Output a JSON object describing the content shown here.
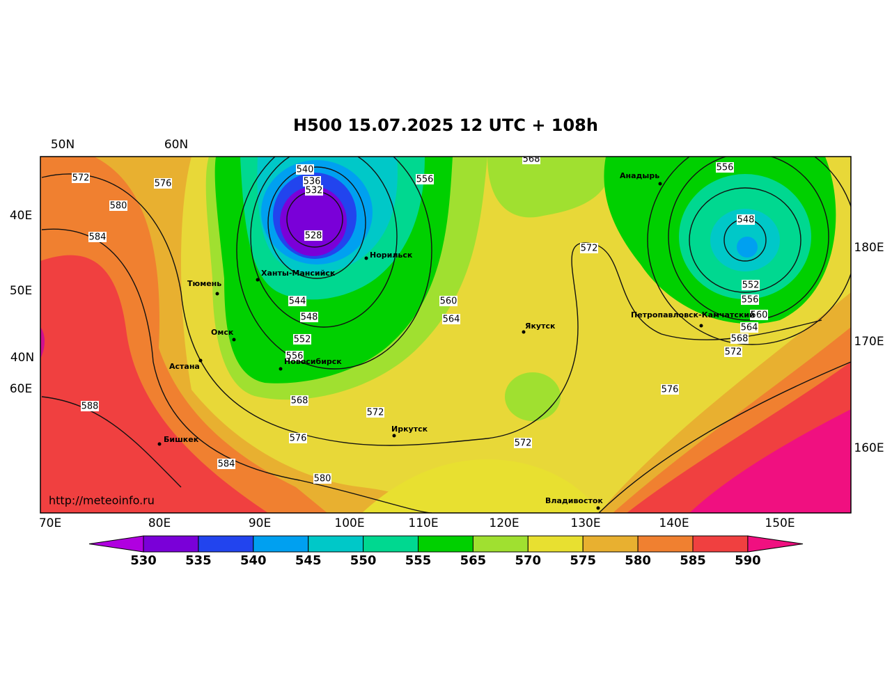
{
  "title": "H500  15.07.2025 12 UTC + 108h",
  "url": "http://meteoinfo.ru",
  "top_labels": [
    "50N",
    "60N"
  ],
  "left_labels": [
    "40E",
    "50E",
    "40N",
    "60E"
  ],
  "right_labels": [
    "180E",
    "170E",
    "160E"
  ],
  "bottom_labels": [
    "70E",
    "80E",
    "90E",
    "100E",
    "110E",
    "120E",
    "130E",
    "140E",
    "150E"
  ],
  "cities": [
    "Анадырь",
    "Норильск",
    "Ханты-Мансийск",
    "Тюмень",
    "Омск",
    "Астана",
    "Новосибирск",
    "Якутск",
    "Петропавловск-Камчатский",
    "Иркутск",
    "Бишкек",
    "Владивосток"
  ],
  "contour_labels": [
    572,
    576,
    580,
    584,
    540,
    536,
    532,
    528,
    556,
    568,
    556,
    548,
    572,
    552,
    556,
    560,
    564,
    568,
    572,
    576,
    560,
    564,
    544,
    548,
    552,
    556,
    568,
    572,
    576,
    572,
    588,
    584,
    580
  ],
  "colorbar": {
    "levels": [
      530,
      535,
      540,
      545,
      550,
      555,
      565,
      570,
      575,
      580,
      585,
      590
    ],
    "colors": [
      "#b000e0",
      "#7a00d8",
      "#2244ee",
      "#00a0f0",
      "#00c8c8",
      "#00d890",
      "#00d000",
      "#a0e030",
      "#e8e030",
      "#e8b030",
      "#f08030",
      "#f04040",
      "#f01080"
    ]
  }
}
